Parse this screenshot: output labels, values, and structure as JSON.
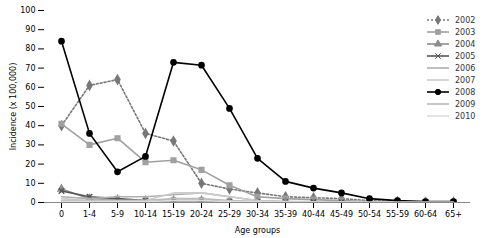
{
  "chart_data": {
    "type": "line",
    "x_label": "Age groups",
    "y_label": "Incidence (x 100,000)",
    "categories": [
      "0",
      "1-4",
      "5-9",
      "10-14",
      "15-19",
      "20-24",
      "25-29",
      "30-34",
      "35-39",
      "40-44",
      "45-49",
      "50-54",
      "55-59",
      "60-64",
      "65+"
    ],
    "ylim": [
      0,
      100
    ],
    "yticks": [
      0,
      10,
      20,
      30,
      40,
      50,
      60,
      70,
      80,
      90,
      100
    ],
    "legend": "right",
    "series": [
      {
        "name": "2002",
        "color": "#777777",
        "marker": "diamond",
        "line_style": "dotted",
        "values": [
          40,
          61,
          64,
          36,
          32,
          10,
          7,
          5,
          3,
          2.5,
          2,
          1,
          0.5,
          0.3,
          0.2
        ]
      },
      {
        "name": "2003",
        "color": "#a0a0a0",
        "marker": "square",
        "line_style": "solid",
        "values": [
          41,
          30,
          33.5,
          21,
          22,
          17,
          9,
          3,
          2,
          1.5,
          1,
          0.5,
          0.3,
          0.2,
          0.1
        ]
      },
      {
        "name": "2004",
        "color": "#8c8c8c",
        "marker": "triangle",
        "line_style": "solid",
        "values": [
          7,
          2,
          1.5,
          1,
          1,
          1,
          0.5,
          0.3,
          0.3,
          0.2,
          0.2,
          0.1,
          0.1,
          0.1,
          0.1
        ]
      },
      {
        "name": "2005",
        "color": "#555555",
        "marker": "x",
        "line_style": "solid",
        "values": [
          6,
          3,
          2,
          1,
          1,
          1,
          0.5,
          0.3,
          0.2,
          0.2,
          0.1,
          0.1,
          0.1,
          0.1,
          0.1
        ]
      },
      {
        "name": "2006",
        "color": "#b0b0b0",
        "marker": "none",
        "line_style": "solid",
        "values": [
          3,
          2,
          3,
          3,
          4,
          5,
          3,
          1,
          0.5,
          0.3,
          0.2,
          0.1,
          0.1,
          0.1,
          0.1
        ]
      },
      {
        "name": "2007",
        "color": "#cccccc",
        "marker": "none",
        "line_style": "solid",
        "values": [
          2,
          1,
          1,
          1,
          5,
          5,
          3,
          1,
          0.5,
          0.3,
          0.2,
          0.1,
          0.1,
          0.1,
          0.1
        ]
      },
      {
        "name": "2008",
        "color": "#000000",
        "marker": "circle",
        "line_style": "solid",
        "values": [
          84,
          36,
          16,
          24,
          73,
          71.5,
          49,
          23,
          11,
          7.5,
          5,
          2,
          1,
          0.5,
          0.5
        ]
      },
      {
        "name": "2009",
        "color": "#bbbbbb",
        "marker": "none",
        "line_style": "solid",
        "values": [
          1,
          1,
          1,
          1,
          2,
          2,
          1,
          0.5,
          0.3,
          0.2,
          0.1,
          0.1,
          0.1,
          0.1,
          0.1
        ]
      },
      {
        "name": "2010",
        "color": "#dddddd",
        "marker": "none",
        "line_style": "solid",
        "values": [
          0.5,
          0.5,
          0.5,
          0.5,
          1,
          1,
          0.5,
          0.3,
          0.2,
          0.1,
          0.1,
          0.1,
          0.1,
          0.1,
          0.1
        ]
      }
    ]
  }
}
